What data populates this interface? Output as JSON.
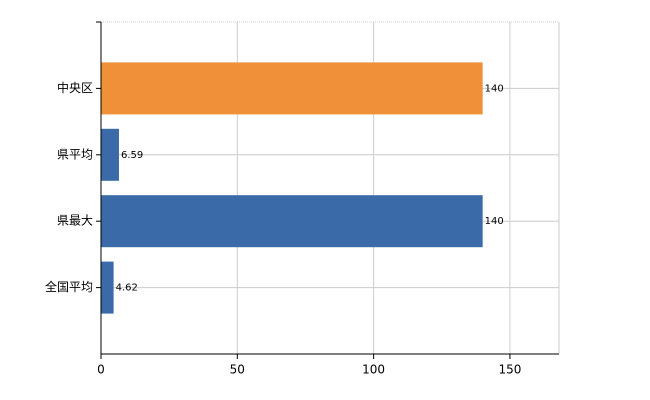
{
  "chart_data": {
    "type": "hbar",
    "categories": [
      "中央区",
      "県平均",
      "県最大",
      "全国平均"
    ],
    "values": [
      140,
      6.59,
      140,
      4.62
    ],
    "colors": [
      "#f0913a",
      "#3b6aa8",
      "#3b6aa8",
      "#3b6aa8"
    ],
    "xlim": [
      0,
      168
    ],
    "xticks": [
      0,
      50,
      100,
      150
    ],
    "grid": true
  }
}
